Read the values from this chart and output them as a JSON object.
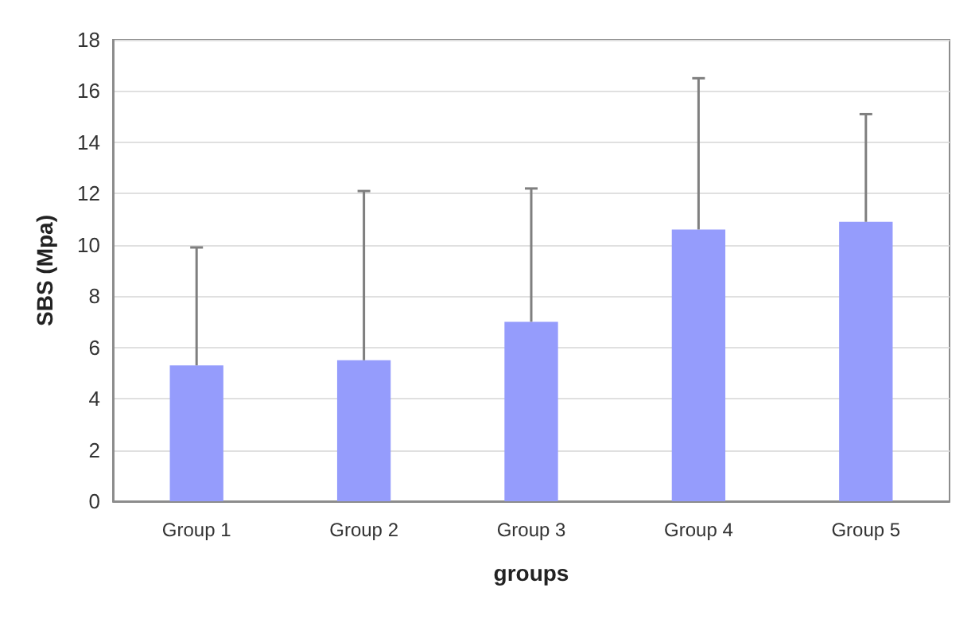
{
  "chart_data": {
    "type": "bar",
    "xlabel": "groups",
    "ylabel": "SBS (Mpa)",
    "categories": [
      "Group 1",
      "Group 2",
      "Group 3",
      "Group 4",
      "Group 5"
    ],
    "series": [
      {
        "color": "#959cfc",
        "values": [
          5.3,
          5.5,
          7.0,
          10.6,
          10.9
        ],
        "errors": [
          [
            5.3,
            9.9
          ],
          [
            5.5,
            12.1
          ],
          [
            7.0,
            12.2
          ],
          [
            10.6,
            16.5
          ],
          [
            10.9,
            15.1
          ]
        ]
      }
    ],
    "ylim": [
      0,
      18
    ],
    "yticks": [
      0,
      2,
      4,
      6,
      8,
      10,
      12,
      14,
      16,
      18
    ],
    "grid": "y"
  }
}
